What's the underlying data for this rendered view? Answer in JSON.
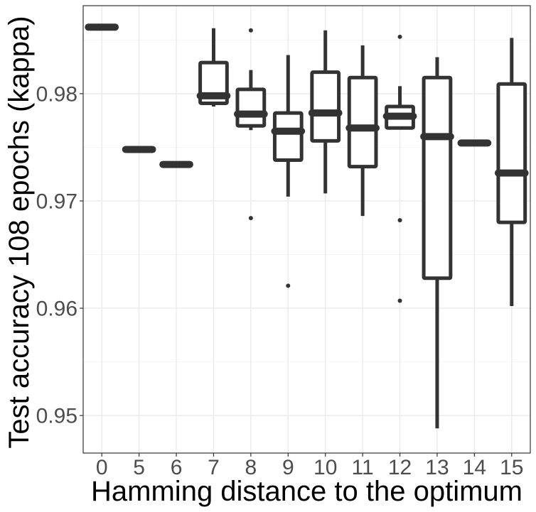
{
  "chart_data": {
    "type": "boxplot",
    "title": "",
    "xlabel": "Hamming distance to the optimum",
    "ylabel": "Test accuracy 108 epochs (kappa)",
    "ylim": [
      0.9465,
      0.9882
    ],
    "y_ticks": [
      0.95,
      0.96,
      0.97,
      0.98
    ],
    "y_tick_labels": [
      "0.95",
      "0.96",
      "0.97",
      "0.98"
    ],
    "y_minor_ticks": [
      0.955,
      0.965,
      0.975,
      0.985
    ],
    "grid": true,
    "categories": [
      "0",
      "5",
      "6",
      "7",
      "8",
      "9",
      "10",
      "11",
      "12",
      "13",
      "14",
      "15"
    ],
    "boxes": [
      {
        "label": "0",
        "lower_whisker": 0.9862,
        "q1": 0.9862,
        "median": 0.9862,
        "q3": 0.9862,
        "upper_whisker": 0.9862,
        "outliers": []
      },
      {
        "label": "5",
        "lower_whisker": 0.9748,
        "q1": 0.9748,
        "median": 0.9748,
        "q3": 0.9748,
        "upper_whisker": 0.9748,
        "outliers": []
      },
      {
        "label": "6",
        "lower_whisker": 0.9734,
        "q1": 0.9734,
        "median": 0.9734,
        "q3": 0.9734,
        "upper_whisker": 0.9734,
        "outliers": []
      },
      {
        "label": "7",
        "lower_whisker": 0.9788,
        "q1": 0.9791,
        "median": 0.9798,
        "q3": 0.9829,
        "upper_whisker": 0.9861,
        "outliers": []
      },
      {
        "label": "8",
        "lower_whisker": 0.9766,
        "q1": 0.977,
        "median": 0.9781,
        "q3": 0.9804,
        "upper_whisker": 0.9822,
        "outliers": [
          0.9859,
          0.9684
        ]
      },
      {
        "label": "9",
        "lower_whisker": 0.9704,
        "q1": 0.9738,
        "median": 0.9765,
        "q3": 0.9782,
        "upper_whisker": 0.9836,
        "outliers": [
          0.9621
        ]
      },
      {
        "label": "10",
        "lower_whisker": 0.9707,
        "q1": 0.9756,
        "median": 0.9782,
        "q3": 0.982,
        "upper_whisker": 0.9859,
        "outliers": []
      },
      {
        "label": "11",
        "lower_whisker": 0.9686,
        "q1": 0.9732,
        "median": 0.9768,
        "q3": 0.9815,
        "upper_whisker": 0.9845,
        "outliers": []
      },
      {
        "label": "12",
        "lower_whisker": 0.9768,
        "q1": 0.9768,
        "median": 0.9779,
        "q3": 0.9788,
        "upper_whisker": 0.9807,
        "outliers": [
          0.9853,
          0.9682,
          0.9607
        ]
      },
      {
        "label": "13",
        "lower_whisker": 0.9488,
        "q1": 0.9628,
        "median": 0.976,
        "q3": 0.9815,
        "upper_whisker": 0.9834,
        "outliers": []
      },
      {
        "label": "14",
        "lower_whisker": 0.9754,
        "q1": 0.9754,
        "median": 0.9754,
        "q3": 0.9754,
        "upper_whisker": 0.9754,
        "outliers": []
      },
      {
        "label": "15",
        "lower_whisker": 0.9602,
        "q1": 0.968,
        "median": 0.9726,
        "q3": 0.9809,
        "upper_whisker": 0.9852,
        "outliers": []
      }
    ]
  },
  "colors": {
    "box_stroke": "#333333",
    "box_fill": "#ffffff",
    "grid_major": "#ebebeb",
    "grid_minor": "#f4f4f4",
    "panel_border": "#333333",
    "tick_label": "#4d4d4d",
    "axis_title": "#000000"
  }
}
